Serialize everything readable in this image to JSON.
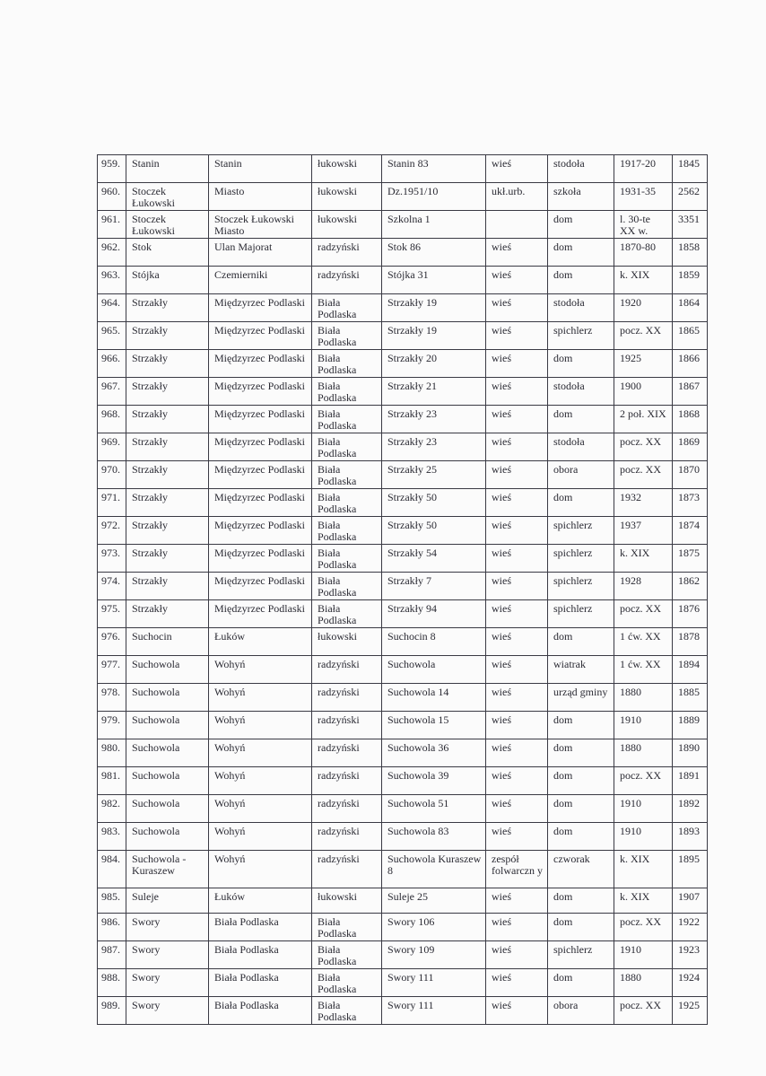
{
  "rows": [
    [
      "959.",
      "Stanin",
      "Stanin",
      "łukowski",
      "Stanin 83",
      "wieś",
      "stodoła",
      "1917-20",
      "1845"
    ],
    [
      "960.",
      "Stoczek Łukowski",
      "Miasto",
      "łukowski",
      "Dz.1951/10",
      "ukł.urb.",
      "szkoła",
      "1931-35",
      "2562"
    ],
    [
      "961.",
      "Stoczek Łukowski",
      "Stoczek Łukowski Miasto",
      "łukowski",
      "Szkolna 1",
      "",
      "dom",
      "l. 30-te XX w.",
      "3351"
    ],
    [
      "962.",
      "Stok",
      "Ulan Majorat",
      "radzyński",
      "Stok 86",
      "wieś",
      "dom",
      "1870-80",
      "1858"
    ],
    [
      "963.",
      "Stójka",
      "Czemierniki",
      "radzyński",
      "Stójka 31",
      "wieś",
      "dom",
      "k. XIX",
      "1859"
    ],
    [
      "964.",
      "Strzakły",
      "Międzyrzec Podlaski",
      "Biała Podlaska",
      "Strzakły 19",
      "wieś",
      "stodoła",
      "1920",
      "1864"
    ],
    [
      "965.",
      "Strzakły",
      "Międzyrzec Podlaski",
      "Biała Podlaska",
      "Strzakły 19",
      "wieś",
      "spichlerz",
      "pocz. XX",
      "1865"
    ],
    [
      "966.",
      "Strzakły",
      "Międzyrzec Podlaski",
      "Biała Podlaska",
      "Strzakły 20",
      "wieś",
      "dom",
      "1925",
      "1866"
    ],
    [
      "967.",
      "Strzakły",
      "Międzyrzec Podlaski",
      "Biała Podlaska",
      "Strzakły 21",
      "wieś",
      "stodoła",
      "1900",
      "1867"
    ],
    [
      "968.",
      "Strzakły",
      "Międzyrzec Podlaski",
      "Biała Podlaska",
      "Strzakły 23",
      "wieś",
      "dom",
      "2 poł. XIX",
      "1868"
    ],
    [
      "969.",
      "Strzakły",
      "Międzyrzec Podlaski",
      "Biała Podlaska",
      "Strzakły 23",
      "wieś",
      "stodoła",
      "pocz. XX",
      "1869"
    ],
    [
      "970.",
      "Strzakły",
      "Międzyrzec Podlaski",
      "Biała Podlaska",
      "Strzakły 25",
      "wieś",
      "obora",
      "pocz. XX",
      "1870"
    ],
    [
      "971.",
      "Strzakły",
      "Międzyrzec Podlaski",
      "Biała Podlaska",
      "Strzakły 50",
      "wieś",
      "dom",
      "1932",
      "1873"
    ],
    [
      "972.",
      "Strzakły",
      "Międzyrzec Podlaski",
      "Biała Podlaska",
      "Strzakły 50",
      "wieś",
      "spichlerz",
      "1937",
      "1874"
    ],
    [
      "973.",
      "Strzakły",
      "Międzyrzec Podlaski",
      "Biała Podlaska",
      "Strzakły 54",
      "wieś",
      "spichlerz",
      "k. XIX",
      "1875"
    ],
    [
      "974.",
      "Strzakły",
      "Międzyrzec Podlaski",
      "Biała Podlaska",
      "Strzakły 7",
      "wieś",
      "spichlerz",
      "1928",
      "1862"
    ],
    [
      "975.",
      "Strzakły",
      "Międzyrzec Podlaski",
      "Biała Podlaska",
      "Strzakły 94",
      "wieś",
      "spichlerz",
      "pocz. XX",
      "1876"
    ],
    [
      "976.",
      "Suchocin",
      "Łuków",
      "łukowski",
      "Suchocin 8",
      "wieś",
      "dom",
      "1 ćw. XX",
      "1878"
    ],
    [
      "977.",
      "Suchowola",
      "Wohyń",
      "radzyński",
      "Suchowola",
      "wieś",
      "wiatrak",
      "1 ćw. XX",
      "1894"
    ],
    [
      "978.",
      "Suchowola",
      "Wohyń",
      "radzyński",
      "Suchowola 14",
      "wieś",
      "urząd gminy",
      "1880",
      "1885"
    ],
    [
      "979.",
      "Suchowola",
      "Wohyń",
      "radzyński",
      "Suchowola 15",
      "wieś",
      "dom",
      "1910",
      "1889"
    ],
    [
      "980.",
      "Suchowola",
      "Wohyń",
      "radzyński",
      "Suchowola 36",
      "wieś",
      "dom",
      "1880",
      "1890"
    ],
    [
      "981.",
      "Suchowola",
      "Wohyń",
      "radzyński",
      "Suchowola 39",
      "wieś",
      "dom",
      "pocz. XX",
      "1891"
    ],
    [
      "982.",
      "Suchowola",
      "Wohyń",
      "radzyński",
      "Suchowola 51",
      "wieś",
      "dom",
      "1910",
      "1892"
    ],
    [
      "983.",
      "Suchowola",
      "Wohyń",
      "radzyński",
      "Suchowola 83",
      "wieś",
      "dom",
      "1910",
      "1893"
    ],
    [
      "984.",
      "Suchowola - Kuraszew",
      "Wohyń",
      "radzyński",
      "Suchowola Kuraszew 8",
      "zespół folwarczn y",
      "czworak",
      "k. XIX",
      "1895"
    ],
    [
      "985.",
      "Suleje",
      "Łuków",
      "łukowski",
      "Suleje 25",
      "wieś",
      "dom",
      "k. XIX",
      "1907"
    ],
    [
      "986.",
      "Swory",
      "Biała Podlaska",
      "Biała Podlaska",
      "Swory 106",
      "wieś",
      "dom",
      "pocz. XX",
      "1922"
    ],
    [
      "987.",
      "Swory",
      "Biała Podlaska",
      "Biała Podlaska",
      "Swory 109",
      "wieś",
      "spichlerz",
      "1910",
      "1923"
    ],
    [
      "988.",
      "Swory",
      "Biała Podlaska",
      "Biała Podlaska",
      "Swory 111",
      "wieś",
      "dom",
      "1880",
      "1924"
    ],
    [
      "989.",
      "Swory",
      "Biała Podlaska",
      "Biała Podlaska",
      "Swory 111",
      "wieś",
      "obora",
      "pocz. XX",
      "1925"
    ]
  ]
}
